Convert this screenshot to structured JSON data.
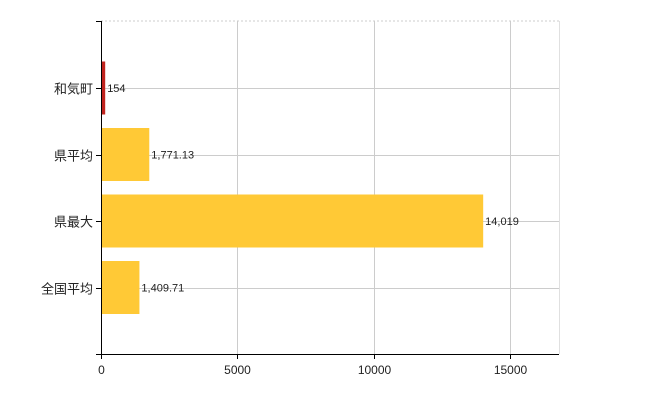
{
  "chart_data": {
    "type": "bar",
    "orientation": "horizontal",
    "categories": [
      "和気町",
      "県平均",
      "県最大",
      "全国平均"
    ],
    "values": [
      154,
      1771.13,
      14019,
      1409.71
    ],
    "value_labels": [
      "154",
      "1,771.13",
      "14,019",
      "1,409.71"
    ],
    "colors": [
      "#c0231e",
      "#ffc936",
      "#ffc936",
      "#ffc936"
    ],
    "xlim": [
      0,
      16800
    ],
    "xticks": [
      0,
      5000,
      10000,
      15000
    ],
    "xtick_labels": [
      "0",
      "5000",
      "10000",
      "15000"
    ],
    "grid": true,
    "title": "",
    "xlabel": "",
    "ylabel": ""
  }
}
